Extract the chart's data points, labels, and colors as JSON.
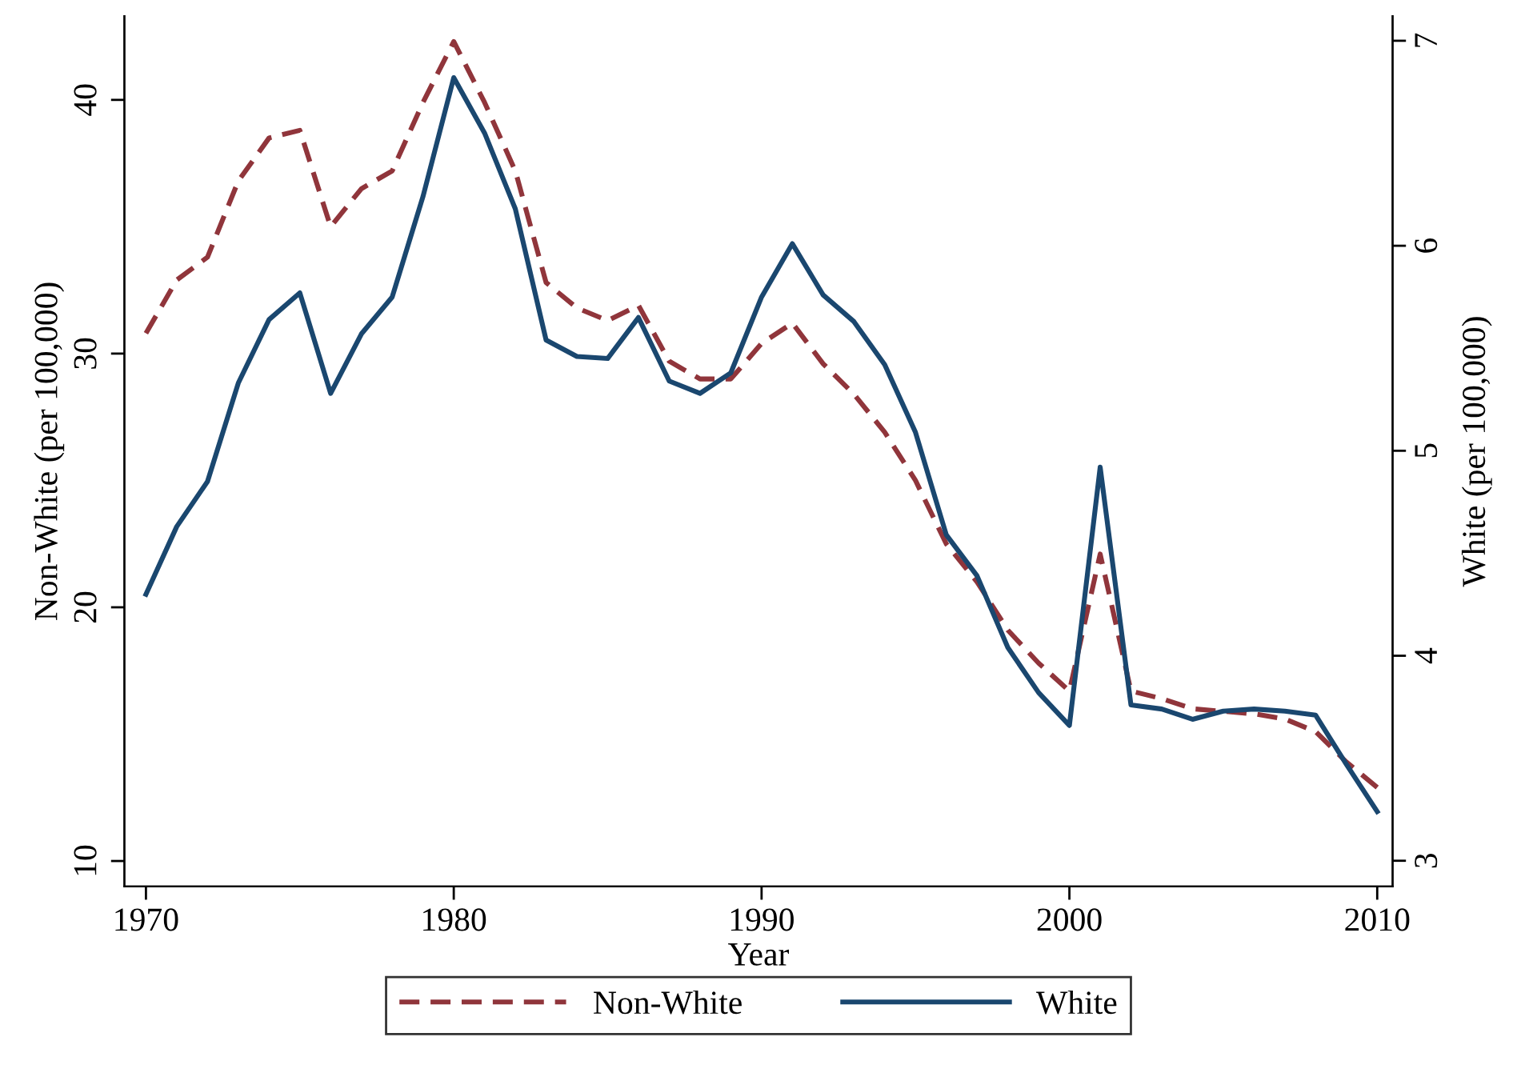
{
  "chart_data": {
    "type": "line",
    "xlabel": "Year",
    "ylabel": "Non-White (per 100,000)",
    "y2label": "White (per 100,000)",
    "x": [
      1970,
      1971,
      1972,
      1973,
      1974,
      1975,
      1976,
      1977,
      1978,
      1979,
      1980,
      1981,
      1982,
      1983,
      1984,
      1985,
      1986,
      1987,
      1988,
      1989,
      1990,
      1991,
      1992,
      1993,
      1994,
      1995,
      1996,
      1997,
      1998,
      1999,
      2000,
      2001,
      2002,
      2003,
      2004,
      2005,
      2006,
      2007,
      2008,
      2009,
      2010
    ],
    "series": [
      {
        "name": "Non-White",
        "color": "#90353b",
        "line_style": "dashed",
        "values": [
          30.8,
          32.9,
          33.8,
          36.8,
          38.5,
          38.8,
          35.0,
          36.5,
          37.2,
          39.9,
          42.3,
          39.9,
          37.2,
          32.8,
          31.8,
          31.3,
          31.9,
          29.7,
          29.0,
          29.0,
          30.4,
          31.2,
          29.6,
          28.4,
          26.9,
          25.0,
          22.5,
          21.0,
          19.1,
          17.8,
          16.7,
          22.1,
          16.7,
          16.4,
          16.0,
          15.9,
          15.8,
          15.6,
          15.1,
          13.9,
          12.9
        ]
      },
      {
        "name": "White",
        "color": "#1a476f",
        "line_style": "solid",
        "axis": "y2",
        "values": [
          4.3,
          4.63,
          4.85,
          5.33,
          5.64,
          5.77,
          5.28,
          5.57,
          5.75,
          6.24,
          6.82,
          6.55,
          6.18,
          5.54,
          5.46,
          5.45,
          5.65,
          5.34,
          5.28,
          5.38,
          5.75,
          6.01,
          5.76,
          5.63,
          5.42,
          5.09,
          4.59,
          4.39,
          4.04,
          3.82,
          3.66,
          4.92,
          3.76,
          3.74,
          3.69,
          3.73,
          3.74,
          3.73,
          3.71,
          3.47,
          3.24
        ]
      }
    ],
    "xlim": [
      1969.3,
      2010.5
    ],
    "xticks": [
      1970,
      1980,
      1990,
      2000,
      2010
    ],
    "ylim": [
      9,
      43.3
    ],
    "yticks": [
      10,
      20,
      30,
      40
    ],
    "y2lim": [
      2.875,
      7.12
    ],
    "y2ticks": [
      3,
      4,
      5,
      6,
      7
    ],
    "grid": false,
    "legend": "bottom",
    "marker": "none"
  }
}
